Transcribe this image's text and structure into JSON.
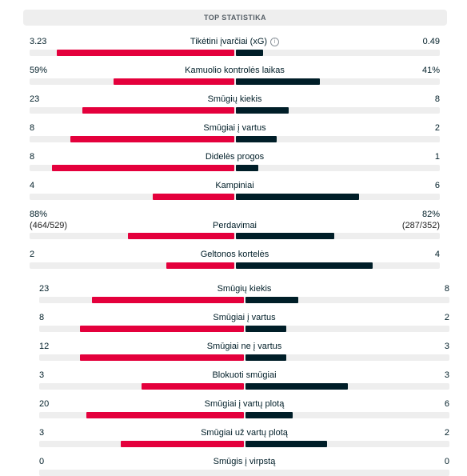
{
  "section_title": "TOP STATISTIKA",
  "colors": {
    "home": "#e4003c",
    "away": "#001e28",
    "track": "#eeeeee"
  },
  "stats": [
    {
      "label": "Tikėtini įvarčiai (xG)",
      "home": "3.23",
      "away": "0.49",
      "home_share": 0.868,
      "away_share": 0.132,
      "info": "i"
    },
    {
      "label": "Kamuolio kontrolės laikas",
      "home": "59%",
      "away": "41%",
      "home_share": 0.59,
      "away_share": 0.41
    },
    {
      "label": "Smūgių kiekis",
      "home": "23",
      "away": "8",
      "home_share": 0.742,
      "away_share": 0.258
    },
    {
      "label": "Smūgiai į vartus",
      "home": "8",
      "away": "2",
      "home_share": 0.8,
      "away_share": 0.2
    },
    {
      "label": "Didelės progos",
      "home": "8",
      "away": "1",
      "home_share": 0.889,
      "away_share": 0.111
    },
    {
      "label": "Kampiniai",
      "home": "4",
      "away": "6",
      "home_share": 0.4,
      "away_share": 0.6
    },
    {
      "label": "Perdavimai",
      "home": "88%",
      "away": "82%",
      "home_sub": "(464/529)",
      "away_sub": "(287/352)",
      "home_share": 0.518,
      "away_share": 0.482
    },
    {
      "label": "Geltonos kortelės",
      "home": "2",
      "away": "4",
      "home_share": 0.333,
      "away_share": 0.667
    }
  ],
  "shots": [
    {
      "label": "Smūgių kiekis",
      "home": "23",
      "away": "8",
      "home_share": 0.742,
      "away_share": 0.258
    },
    {
      "label": "Smūgiai į vartus",
      "home": "8",
      "away": "2",
      "home_share": 0.8,
      "away_share": 0.2
    },
    {
      "label": "Smūgiai ne į vartus",
      "home": "12",
      "away": "3",
      "home_share": 0.8,
      "away_share": 0.2
    },
    {
      "label": "Blokuoti smūgiai",
      "home": "3",
      "away": "3",
      "home_share": 0.5,
      "away_share": 0.5
    },
    {
      "label": "Smūgiai į vartų plotą",
      "home": "20",
      "away": "6",
      "home_share": 0.769,
      "away_share": 0.231
    },
    {
      "label": "Smūgiai už vartų plotą",
      "home": "3",
      "away": "2",
      "home_share": 0.6,
      "away_share": 0.4
    },
    {
      "label": "Smūgis į virpstą",
      "home": "0",
      "away": "0",
      "home_share": 0,
      "away_share": 0
    }
  ]
}
